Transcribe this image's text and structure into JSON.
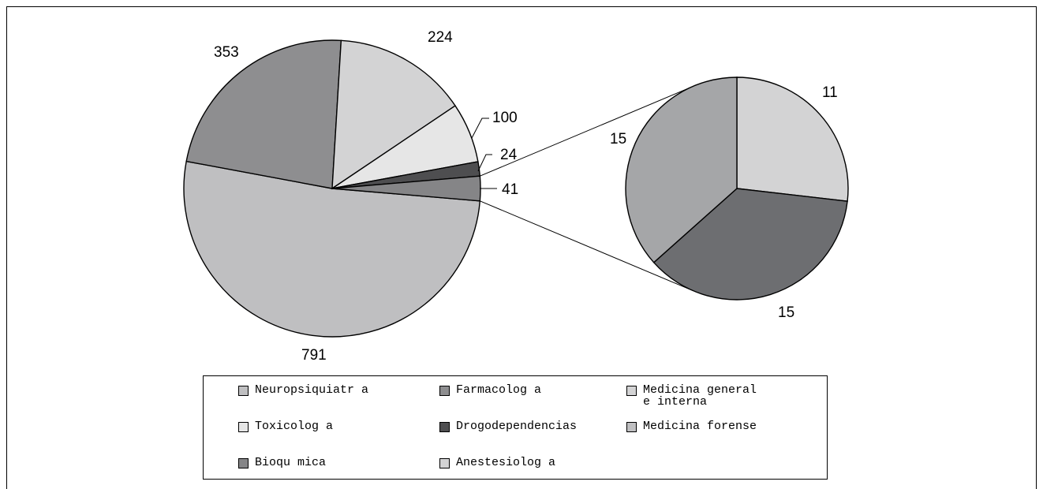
{
  "chart_data": [
    {
      "type": "pie",
      "slices": [
        {
          "label": "Medicina forense",
          "value": 791,
          "color": "#bfbfc1"
        },
        {
          "label": "Farmacología",
          "value": 353,
          "color": "#8e8e90"
        },
        {
          "label": "Medicina general e interna",
          "value": 224,
          "color": "#d3d3d4"
        },
        {
          "label": "Toxicología",
          "value": 100,
          "color": "#e6e6e6"
        },
        {
          "label": "Drogodependencias",
          "value": 24,
          "color": "#4e4e50"
        },
        {
          "label": "Bioquímica / Neuropsiquiatría / Anestesiología (grouped)",
          "value": 41,
          "color": "#858587"
        }
      ],
      "labels": [
        "791",
        "353",
        "224",
        "100",
        "24",
        "41"
      ]
    },
    {
      "type": "pie",
      "slices": [
        {
          "label": "Anestesiología",
          "value": 11,
          "color": "#d3d3d4"
        },
        {
          "label": "Bioquímica",
          "value": 15,
          "color": "#6d6e71"
        },
        {
          "label": "Neuropsiquiatría",
          "value": 15,
          "color": "#a5a6a8"
        }
      ],
      "labels": [
        "11",
        "15",
        "15"
      ]
    }
  ],
  "legend": {
    "items": [
      {
        "label": "Neuropsiquiatr a",
        "color": "#bfbfc1"
      },
      {
        "label": "Farmacolog a",
        "color": "#8e8e90"
      },
      {
        "label": "Medicina general\ne interna",
        "color": "#d3d3d4"
      },
      {
        "label": "Toxicolog a",
        "color": "#e6e6e6"
      },
      {
        "label": "Drogodependencias",
        "color": "#4e4e50"
      },
      {
        "label": "Medicina forense",
        "color": "#bfbfc1"
      },
      {
        "label": "Bioqu mica",
        "color": "#858587"
      },
      {
        "label": "Anestesiolog a",
        "color": "#d3d3d4"
      }
    ]
  }
}
